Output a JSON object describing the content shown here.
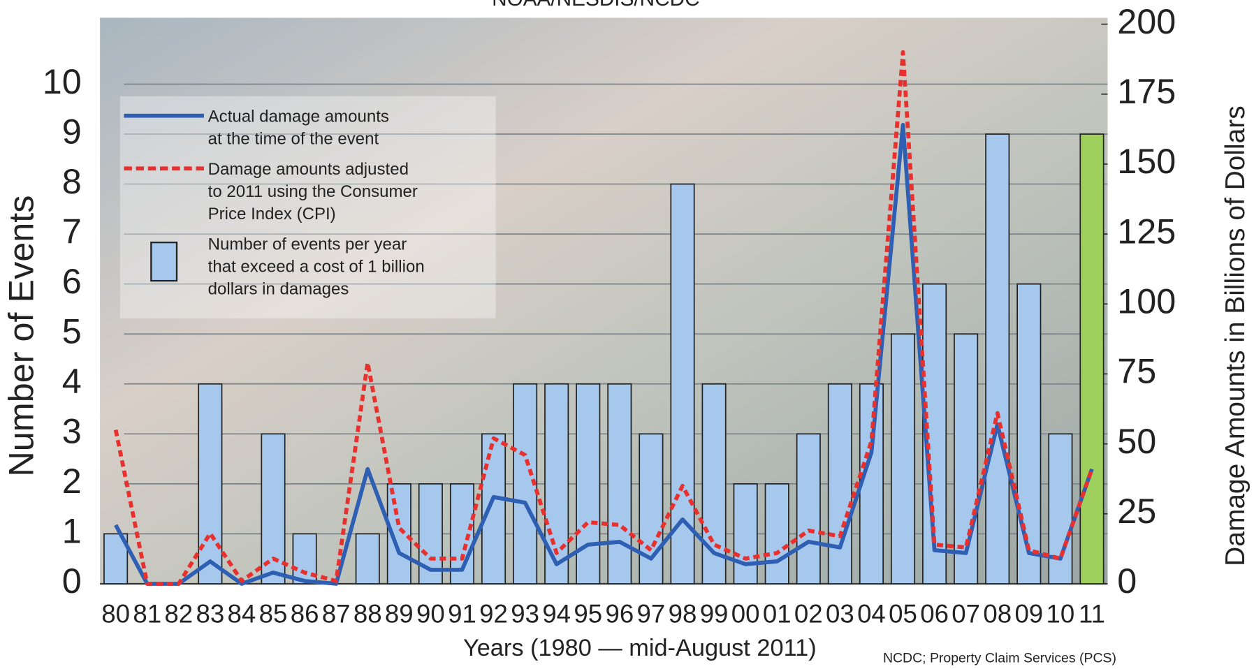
{
  "chart_data": {
    "type": "bar",
    "title": "NOAA/NESDIS/NCDC",
    "x_label": "Years (1980 — mid-August 2011)",
    "y_label": "Number of Events",
    "y2_label": "Damage Amounts in Billions of Dollars",
    "source": "NCDC; Property Claim Services (PCS)",
    "categories": [
      "80",
      "81",
      "82",
      "83",
      "84",
      "85",
      "86",
      "87",
      "88",
      "89",
      "90",
      "91",
      "92",
      "93",
      "94",
      "95",
      "96",
      "97",
      "98",
      "99",
      "00",
      "01",
      "02",
      "03",
      "04",
      "05",
      "06",
      "07",
      "08",
      "09",
      "10",
      "11"
    ],
    "series": [
      {
        "name": "Number of events per year\nthat exceed a cost of 1 billion\ndollars in damages",
        "type": "bar",
        "color": "#a6c8ec",
        "colors": [
          "#a6c8ec",
          "#a6c8ec",
          "#a6c8ec",
          "#a6c8ec",
          "#a6c8ec",
          "#a6c8ec",
          "#a6c8ec",
          "#a6c8ec",
          "#a6c8ec",
          "#a6c8ec",
          "#a6c8ec",
          "#a6c8ec",
          "#a6c8ec",
          "#a6c8ec",
          "#a6c8ec",
          "#a6c8ec",
          "#a6c8ec",
          "#a6c8ec",
          "#a6c8ec",
          "#a6c8ec",
          "#a6c8ec",
          "#a6c8ec",
          "#a6c8ec",
          "#a6c8ec",
          "#a6c8ec",
          "#a6c8ec",
          "#a6c8ec",
          "#a6c8ec",
          "#a6c8ec",
          "#a6c8ec",
          "#a6c8ec",
          "#9fd05e"
        ],
        "values": [
          1,
          0,
          0,
          4,
          0,
          3,
          1,
          0,
          1,
          2,
          2,
          2,
          3,
          4,
          4,
          4,
          4,
          3,
          8,
          4,
          2,
          2,
          3,
          4,
          4,
          5,
          6,
          5,
          9,
          6,
          3,
          9
        ]
      },
      {
        "name": "Actual damage amounts\nat the time of the event",
        "type": "line",
        "axis": "y2",
        "color": "#2f5fb3",
        "values": [
          21,
          0,
          0,
          8,
          0,
          4,
          1,
          0,
          41,
          11,
          5,
          5,
          31,
          29,
          7,
          14,
          15,
          9,
          23,
          11,
          7,
          8,
          15,
          13,
          47,
          164,
          12,
          11,
          57,
          11,
          9,
          41
        ]
      },
      {
        "name": "Damage amounts adjusted\nto 2011 using the Consumer\nPrice Index (CPI)",
        "type": "line",
        "axis": "y2",
        "color": "#e8302e",
        "dashed": true,
        "values": [
          55,
          0,
          0,
          18,
          1,
          9,
          4,
          1,
          79,
          20,
          9,
          9,
          52,
          46,
          11,
          22,
          21,
          12,
          35,
          14,
          9,
          11,
          19,
          17,
          51,
          190,
          14,
          13,
          61,
          12,
          9,
          41
        ]
      }
    ],
    "ylim": [
      0,
      11.2
    ],
    "yticks": [
      0,
      1,
      2,
      3,
      4,
      5,
      6,
      7,
      8,
      9,
      10
    ],
    "y2lim": [
      0,
      200
    ],
    "y2ticks": [
      0,
      25,
      50,
      75,
      100,
      125,
      150,
      175,
      200
    ],
    "grid": true,
    "legend": "upper left"
  }
}
